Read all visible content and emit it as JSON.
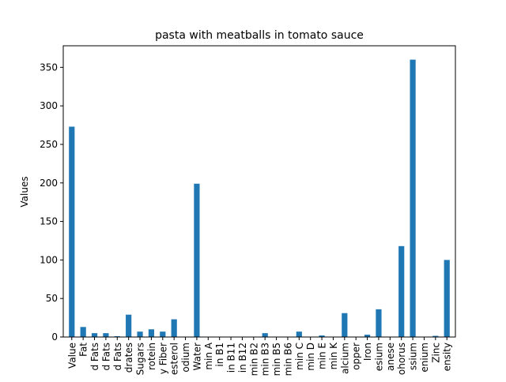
{
  "chart_data": {
    "type": "bar",
    "title": "pasta with meatballs in tomato sauce",
    "xlabel": "",
    "ylabel": "Values",
    "ylim": [
      0,
      378
    ],
    "yticks": [
      0,
      50,
      100,
      150,
      200,
      250,
      300,
      350
    ],
    "categories": [
      "Value",
      "Fat",
      "d Fats",
      "d Fats",
      "d Fats",
      "drates",
      "Sugars",
      "rotein",
      "y Fiber",
      "esterol",
      "odium",
      "Water",
      "min A",
      "in B1",
      "in B11",
      "in B12",
      "min B2",
      "min B3",
      "min B5",
      "min B6",
      "min C",
      "min D",
      "min E",
      "min K",
      "alcium",
      "opper",
      "Iron",
      "esium",
      "anese",
      "ohorus",
      "ssium",
      "enium",
      "Zinc",
      "ensity"
    ],
    "values": [
      273,
      13,
      5,
      5,
      1,
      29,
      7,
      10,
      7,
      23,
      0.3,
      199,
      0.1,
      0.2,
      0,
      0.3,
      0.2,
      5,
      0.3,
      0.2,
      7,
      0,
      2,
      0.5,
      31,
      0.1,
      3,
      36,
      0.3,
      118,
      360,
      0.2,
      1.5,
      100
    ],
    "color": "#1f77b4",
    "grid": false,
    "legend": "none"
  }
}
